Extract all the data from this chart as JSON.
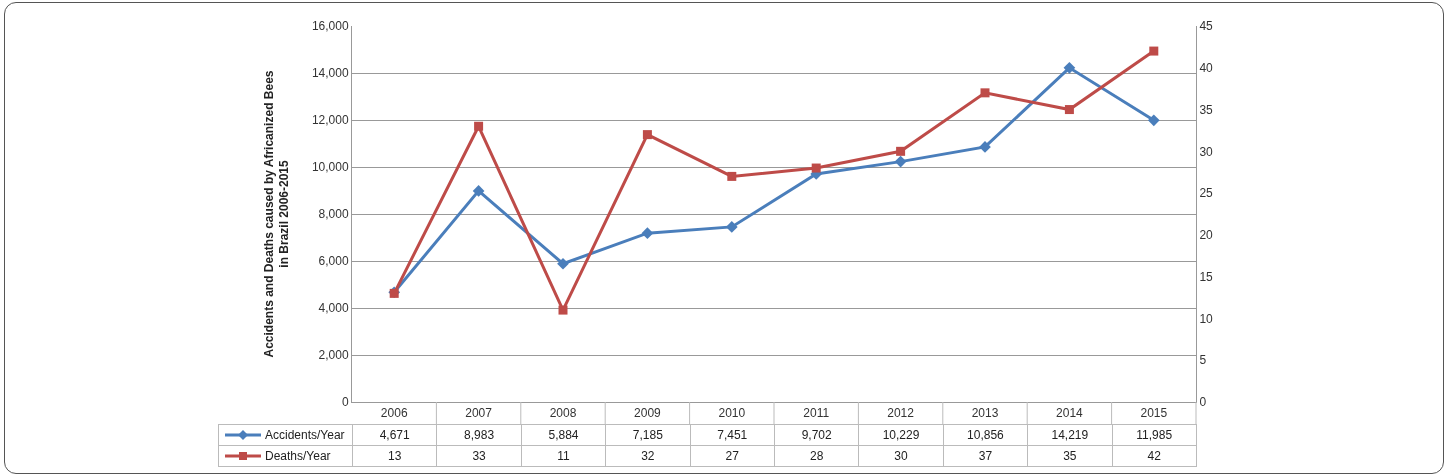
{
  "chart_data": {
    "type": "line",
    "ylabel": "Accidents and Deaths caused by Africanized Bees\nin Brazil 2006-2015",
    "categories": [
      "2006",
      "2007",
      "2008",
      "2009",
      "2010",
      "2011",
      "2012",
      "2013",
      "2014",
      "2015"
    ],
    "series": [
      {
        "name": "Accidents/Year",
        "color": "#4a7ebb",
        "marker": "diamond",
        "values": [
          4671,
          8983,
          5884,
          7185,
          7451,
          9702,
          10229,
          10856,
          14219,
          11985
        ],
        "value_labels": [
          "4,671",
          "8,983",
          "5,884",
          "7,185",
          "7,451",
          "9,702",
          "10,229",
          "10,856",
          "14,219",
          "11,985"
        ]
      },
      {
        "name": "Deaths/Year",
        "color": "#be4b48",
        "marker": "square",
        "axis": "y2",
        "values": [
          13,
          33,
          11,
          32,
          27,
          28,
          30,
          37,
          35,
          42
        ],
        "value_labels": [
          "13",
          "33",
          "11",
          "32",
          "27",
          "28",
          "30",
          "37",
          "35",
          "42"
        ]
      }
    ],
    "ylim": [
      0,
      16000
    ],
    "yticks": [
      {
        "value": 0,
        "label": "0"
      },
      {
        "value": 2000,
        "label": "2,000"
      },
      {
        "value": 4000,
        "label": "4,000"
      },
      {
        "value": 6000,
        "label": "6,000"
      },
      {
        "value": 8000,
        "label": "8,000"
      },
      {
        "value": 10000,
        "label": "10,000"
      },
      {
        "value": 12000,
        "label": "12,000"
      },
      {
        "value": 14000,
        "label": "14,000"
      },
      {
        "value": 16000,
        "label": "16,000"
      }
    ],
    "y2lim": [
      0,
      45
    ],
    "y2ticks": [
      0,
      5,
      10,
      15,
      20,
      25,
      30,
      35,
      40,
      45
    ],
    "grid": "y",
    "legend": "bottom",
    "line_style": "solid"
  }
}
